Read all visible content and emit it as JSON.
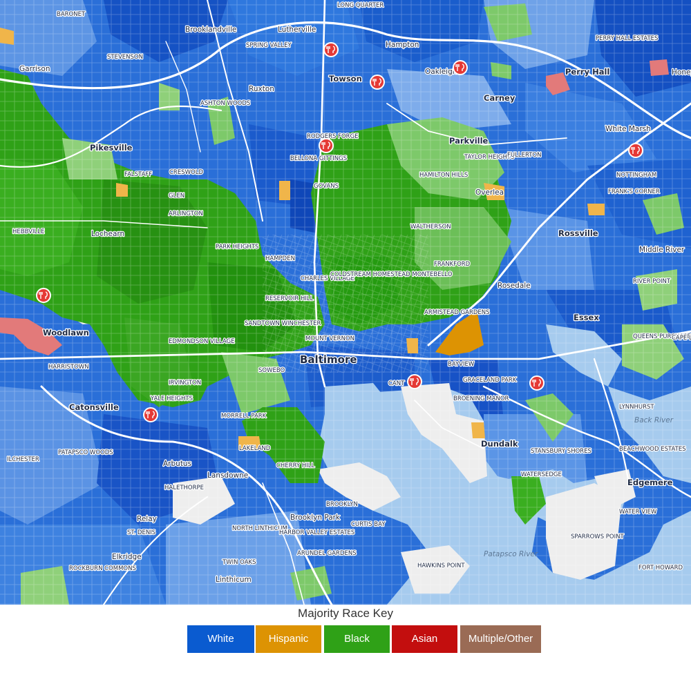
{
  "legend": {
    "title": "Majority Race Key",
    "items": [
      {
        "label": "White",
        "color": "#0a5bd0"
      },
      {
        "label": "Hispanic",
        "color": "#dd9303"
      },
      {
        "label": "Black",
        "color": "#2fa117"
      },
      {
        "label": "Asian",
        "color": "#c30e0e"
      },
      {
        "label": "Multiple/Other",
        "color": "#9a6b55"
      }
    ]
  },
  "map": {
    "labels": {
      "baronet": "BARONET",
      "brooklandville": "Brooklandville",
      "lutherville": "Lutherville",
      "long_quarter": "LONG QUARTER",
      "perry_hall_estates": "PERRY HALL ESTATES",
      "stevenson": "STEVENSON",
      "spring_valley": "SPRING VALLEY",
      "hampton": "Hampton",
      "garrison": "Garrison",
      "towson": "Towson",
      "oakleigh": "Oakleigh",
      "perry_hall": "Perry Hall",
      "honey": "Honey",
      "ruxton": "Ruxton",
      "carney": "Carney",
      "ashton_woods": "ASHTON WOODS",
      "white_marsh": "White Marsh",
      "pikesville": "Pikesville",
      "rodgers_forge": "RODGERS FORGE",
      "parkville": "Parkville",
      "falstaff": "FALSTAFF",
      "creswold": "CRESWOLD",
      "bellona_gittings": "BELLONA GITTINGS",
      "hamilton_hills": "HAMILTON HILLS",
      "taylor_heights": "TAYLOR HEIGHTS",
      "fullerton": "FULLERTON",
      "nottingham": "NOTTINGHAM",
      "glen": "GLEN",
      "govans": "GOVANS",
      "overlea": "Overlea",
      "franks_corner": "FRANK'S CORNER",
      "arlington": "ARLINGTON",
      "hebbville": "HEBBVILLE",
      "lochearn": "Lochearn",
      "waltherson": "WALTHERSON",
      "rossville": "Rossville",
      "park_heights": "PARK HEIGHTS",
      "hampden": "HAMPDEN",
      "middle_river": "Middle River",
      "frankford": "FRANKFORD",
      "charles_village": "CHARLES VILLAGE",
      "coldstream": "COLDSTREAM HOMESTEAD MONTEBELLO",
      "rosedale": "Rosedale",
      "river_point": "RIVER POINT",
      "reservoir_hill": "RESERVOIR HILL",
      "armistead_gardens": "ARMISTEAD GARDENS",
      "essex": "Essex",
      "sandtown": "SANDTOWN WINCHESTER",
      "queens_purchase": "QUEENS PURCHASE",
      "cape_land": "CAPE LAND",
      "woodlawn": "Woodlawn",
      "edmondson_village": "EDMONDSON VILLAGE",
      "mount_vernon": "MOUNT VERNON",
      "baltimore": "Baltimore",
      "bayview": "BAYVIEW",
      "harristown": "HARRISTOWN",
      "sowebo": "SOWEBO",
      "canton": "CANT",
      "graceland_park": "GRACELAND PARK",
      "irvington": "IRVINGTON",
      "broening_manor": "BROENING MANOR",
      "catonsville": "Catonsville",
      "lynnhurst": "LYNNHURST",
      "yale_heights": "YALE HEIGHTS",
      "back_river": "Back River",
      "morrell_park": "MORRELL PARK",
      "dundalk": "Dundalk",
      "ilchester": "ILCHESTER",
      "patapsco_woods": "PATAPSCO WOODS",
      "lakeland": "LAKELAND",
      "stansbury_shores": "STANSBURY SHORES",
      "beachwood_estates": "BEACHWOOD ESTATES",
      "arbutus": "Arbutus",
      "cherry_hill": "CHERRY HILL",
      "lansdowne": "Lansdowne",
      "watersedge": "WATERSEDGE",
      "edgemere": "Edgemere",
      "halethorpe": "HALETHORPE",
      "brooklyn": "BROOKLYN",
      "relay": "Relay",
      "water_view": "WATER VIEW",
      "brooklyn_park": "Brooklyn Park",
      "curtis_bay": "CURTIS BAY",
      "st_denis": "ST. DENIS",
      "north_linthicum": "NORTH LINTHICUM",
      "harbor_valley_estates": "HARBOR VALLEY ESTATES",
      "sparrows_point": "SPARROWS POINT",
      "elkridge": "Elkridge",
      "patapsco_river": "Patapsco River",
      "arundel_gardens": "ARUNDEL GARDENS",
      "rockburn_commons": "ROCKBURN COMMONS",
      "twin_oaks": "TWIN OAKS",
      "hawkins_point": "HAWKINS POINT",
      "fort_howard": "FORT HOWARD",
      "linthicum": "Linthicum"
    },
    "markers": [
      {
        "icon": "restaurant-icon"
      },
      {
        "icon": "restaurant-icon"
      },
      {
        "icon": "restaurant-icon"
      },
      {
        "icon": "restaurant-icon"
      },
      {
        "icon": "restaurant-icon"
      },
      {
        "icon": "restaurant-icon"
      },
      {
        "icon": "restaurant-icon"
      },
      {
        "icon": "restaurant-icon"
      },
      {
        "icon": "restaurant-icon"
      }
    ]
  }
}
